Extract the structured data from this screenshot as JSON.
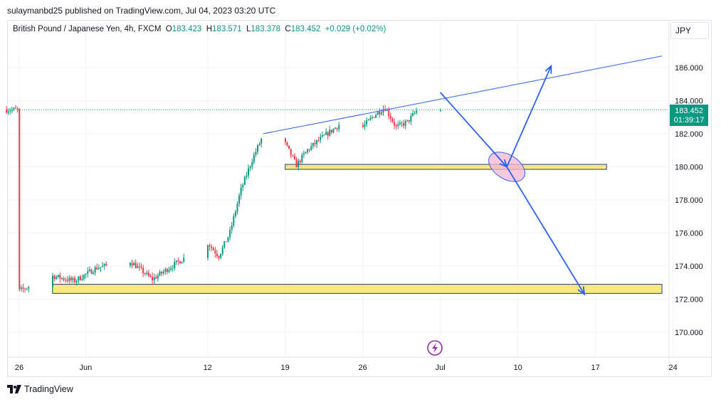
{
  "header": {
    "publisher_text": "sulaymanbd25 published on TradingView.com, Jul 04, 2023 03:20 UTC"
  },
  "legend": {
    "symbol": "British Pound / Japanese Yen, 4h, FXCM",
    "o_label": "O",
    "o": "183.423",
    "h_label": "H",
    "h": "183.571",
    "l_label": "L",
    "l": "183.378",
    "c_label": "C",
    "c": "183.452",
    "change": "+0.029 (+0.02%)"
  },
  "currency_button": "JPY",
  "price_badge": {
    "price": "183.452",
    "countdown": "01:39:17"
  },
  "footer": {
    "brand": "TradingView"
  },
  "colors": {
    "up": "#089981",
    "down": "#f23645",
    "drawing": "#2962ff",
    "zone_fill": "#fbe77d",
    "ellipse_fill": "#f5b6d0"
  },
  "icons": {
    "logo": "tradingview-logo-icon",
    "lightning": "lightning-icon"
  },
  "chart_data": {
    "type": "candlestick",
    "y_axis_labels": [
      "186.000",
      "184.000",
      "182.000",
      "180.000",
      "178.000",
      "176.000",
      "174.000",
      "172.000",
      "170.000"
    ],
    "y_axis_values": [
      186,
      184,
      182,
      180,
      178,
      176,
      174,
      172,
      170
    ],
    "x_axis_labels": [
      "26",
      "Jun",
      "12",
      "19",
      "26",
      "Jul",
      "10",
      "17",
      "24"
    ],
    "last_price": 183.452,
    "anchors": [
      [
        "2023-05-26",
        172.5
      ],
      [
        "2023-05-29",
        173.4
      ],
      [
        "2023-05-31",
        173.1
      ],
      [
        "2023-06-02",
        173.9
      ],
      [
        "2023-06-05",
        174.3
      ],
      [
        "2023-06-07",
        173.2
      ],
      [
        "2023-06-09",
        174.1
      ],
      [
        "2023-06-12",
        175.4
      ],
      [
        "2023-06-13",
        174.6
      ],
      [
        "2023-06-14",
        176.0
      ],
      [
        "2023-06-15",
        178.6
      ],
      [
        "2023-06-16",
        180.4
      ],
      [
        "2023-06-17",
        181.9
      ],
      [
        "2023-06-19",
        181.4
      ],
      [
        "2023-06-20",
        180.1
      ],
      [
        "2023-06-21",
        181.0
      ],
      [
        "2023-06-22",
        181.6
      ],
      [
        "2023-06-24",
        182.6
      ],
      [
        "2023-06-26",
        182.4
      ],
      [
        "2023-06-27",
        183.1
      ],
      [
        "2023-06-28",
        183.6
      ],
      [
        "2023-06-29",
        182.4
      ],
      [
        "2023-06-30",
        182.7
      ],
      [
        "2023-07-01",
        183.5
      ],
      [
        "2023-07-03",
        183.45
      ]
    ],
    "drawings": {
      "trendline": [
        [
          "2023-06-17",
          182.0
        ],
        [
          "2023-07-23",
          186.7
        ]
      ],
      "support_zone_upper": {
        "from": "2023-06-19",
        "to": "2023-07-18",
        "y1": 179.85,
        "y2": 180.15
      },
      "support_zone_lower": {
        "from": "2023-05-29",
        "to": "2023-07-23",
        "y1": 172.35,
        "y2": 172.9
      },
      "arrow_down_1": [
        [
          "2023-07-03",
          184.5
        ],
        [
          "2023-07-09",
          180.0
        ]
      ],
      "arrow_up": [
        [
          "2023-07-09",
          180.0
        ],
        [
          "2023-07-13",
          186.1
        ]
      ],
      "arrow_down_2": [
        [
          "2023-07-09",
          180.0
        ],
        [
          "2023-07-16",
          172.3
        ]
      ],
      "ellipse_center": [
        "2023-07-09",
        180.0
      ]
    }
  }
}
